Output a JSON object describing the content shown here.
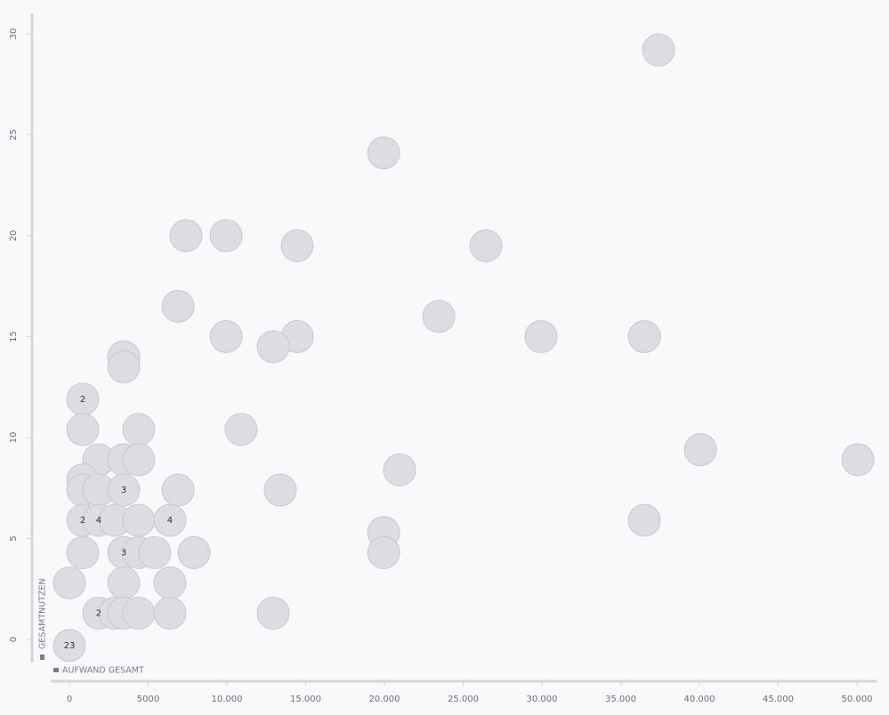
{
  "chart_data": {
    "type": "scatter",
    "x_label": "AUFWAND GESAMT",
    "y_label": "GESAMTNUTZEN",
    "xlim": [
      -1000,
      51500
    ],
    "ylim": [
      -1,
      31
    ],
    "xticks": [
      0,
      5000,
      {
        "value": 10000,
        "label": "10.000"
      },
      {
        "value": 15000,
        "label": "15.000"
      },
      {
        "value": 20000,
        "label": "20.000"
      },
      {
        "value": 25000,
        "label": "25.000"
      },
      {
        "value": 30000,
        "label": "30.000"
      },
      {
        "value": 35000,
        "label": "35.000"
      },
      {
        "value": 40000,
        "label": "40.000"
      },
      {
        "value": 45000,
        "label": "45.000"
      },
      {
        "value": 50000,
        "label": "50.000"
      }
    ],
    "yticks": [
      0,
      5,
      10,
      15,
      20,
      25,
      30
    ],
    "color": "#dcdde0",
    "x": [
      37400,
      19950,
      7400,
      9950,
      14460,
      26440,
      6900,
      23450,
      9950,
      14460,
      12940,
      29940,
      36500,
      3450,
      3450,
      850,
      850,
      4400,
      10900,
      40060,
      50060,
      20960,
      1860,
      3450,
      4400,
      850,
      850,
      1860,
      3450,
      6900,
      13390,
      850,
      1860,
      2880,
      4400,
      6380,
      36500,
      19950,
      19950,
      850,
      3450,
      4400,
      5420,
      7910,
      0,
      3450,
      6380,
      1860,
      2880,
      3450,
      4400,
      6380,
      12940,
      0
    ],
    "y": [
      29.2,
      24.1,
      20.0,
      20.0,
      19.5,
      19.5,
      16.5,
      16.0,
      15.0,
      15.0,
      14.5,
      15.0,
      15.0,
      14.0,
      13.5,
      11.9,
      10.4,
      10.4,
      10.4,
      9.4,
      8.9,
      8.4,
      8.9,
      8.9,
      8.9,
      7.9,
      7.4,
      7.4,
      7.4,
      7.4,
      7.4,
      5.9,
      5.9,
      5.9,
      5.9,
      5.9,
      5.9,
      5.3,
      4.3,
      4.3,
      4.3,
      4.3,
      4.3,
      4.3,
      2.8,
      2.8,
      2.8,
      1.3,
      1.3,
      1.3,
      1.3,
      1.3,
      1.3,
      -0.3
    ],
    "counts": [
      null,
      null,
      null,
      null,
      null,
      null,
      null,
      null,
      null,
      null,
      null,
      null,
      null,
      null,
      null,
      2,
      null,
      null,
      null,
      null,
      null,
      null,
      null,
      null,
      null,
      null,
      null,
      null,
      3,
      null,
      null,
      2,
      4,
      null,
      null,
      4,
      null,
      null,
      null,
      null,
      3,
      null,
      null,
      null,
      null,
      null,
      null,
      2,
      null,
      null,
      null,
      null,
      null,
      23
    ]
  }
}
